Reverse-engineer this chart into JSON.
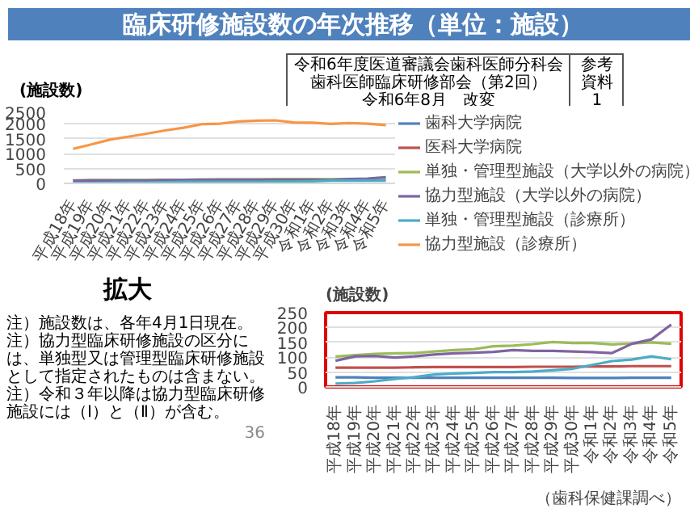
{
  "chart_data": [
    {
      "type": "line",
      "title": "臨床研修施設数の年次推移（単位：施設）",
      "ylabel": "(施設数)",
      "annotations": [
        "令和6年度医道審議会歯科医師分科会",
        "歯科医師臨床研修部会（第2回）",
        "令和6年8月　改変",
        "参考資料1"
      ],
      "categories": [
        "平成18年",
        "平成19年",
        "平成20年",
        "平成21年",
        "平成22年",
        "平成23年",
        "平成24年",
        "平成25年",
        "平成26年",
        "平成27年",
        "平成28年",
        "平成29年",
        "平成30年",
        "令和1年",
        "令和2年",
        "令和3年",
        "令和4年",
        "令和5年"
      ],
      "ylim": [
        0,
        2500
      ],
      "yticks": [
        0,
        500,
        1000,
        1500,
        2000,
        2500
      ],
      "grid": "y",
      "legend": "right",
      "series": [
        {
          "name": "歯科大学病院",
          "color": "#4f81bd",
          "values": [
            null,
            null,
            null,
            null,
            null,
            null,
            null,
            null,
            null,
            null,
            null,
            null,
            null,
            null,
            null,
            null,
            null,
            null
          ]
        },
        {
          "name": "医科大学病院",
          "color": "#c0504d",
          "values": [
            null,
            null,
            null,
            null,
            null,
            null,
            null,
            null,
            null,
            null,
            null,
            null,
            null,
            null,
            null,
            null,
            null,
            null
          ]
        },
        {
          "name": "単独・管理型施設（大学以外の病院）",
          "color": "#9bbb59",
          "values": [
            100,
            110,
            110,
            110,
            110,
            120,
            120,
            130,
            140,
            140,
            140,
            150,
            150,
            150,
            140,
            150,
            150,
            150
          ]
        },
        {
          "name": "協力型施設（大学以外の病院）",
          "color": "#8064a2",
          "values": [
            90,
            100,
            100,
            100,
            100,
            110,
            110,
            120,
            120,
            120,
            120,
            120,
            120,
            120,
            110,
            150,
            160,
            210
          ]
        },
        {
          "name": "単独・管理型施設（診療所）",
          "color": "#4bacc6",
          "values": [
            10,
            10,
            20,
            30,
            30,
            40,
            50,
            50,
            50,
            50,
            50,
            60,
            60,
            70,
            90,
            90,
            100,
            90
          ]
        },
        {
          "name": "協力型施設（診療所）",
          "color": "#f79646",
          "values": [
            1160,
            1310,
            1470,
            1570,
            1670,
            1780,
            1870,
            1990,
            2010,
            2080,
            2110,
            2120,
            2050,
            2040,
            2000,
            2030,
            2010,
            1960
          ]
        }
      ]
    },
    {
      "type": "line",
      "ylabel": "(施設数)",
      "annotations": [
        "拡大",
        "注）施設数は、各年4月1日現在。",
        "注）協力型臨床研修施設の区分には、単独型又は管理型臨床研修施設として指定されたものは含まない。",
        "注）令和３年以降は協力型臨床研修施設には（Ⅰ）と（Ⅱ）が含む。",
        "（歯科保健課調べ）",
        "36"
      ],
      "categories": [
        "平成18年",
        "平成19年",
        "平成20年",
        "平成21年",
        "平成22年",
        "平成23年",
        "平成24年",
        "平成25年",
        "平成26年",
        "平成27年",
        "平成28年",
        "平成29年",
        "平成30年",
        "令和1年",
        "令和2年",
        "令和3年",
        "令和4年",
        "令和5年"
      ],
      "ylim": [
        0,
        250
      ],
      "yticks": [
        0,
        50,
        100,
        150,
        200,
        250
      ],
      "grid": "y",
      "series": [
        {
          "color": "#4f81bd",
          "values": [
            32,
            32,
            31,
            31,
            31,
            31,
            31,
            31,
            31,
            31,
            31,
            31,
            30,
            30,
            30,
            31,
            31,
            31
          ]
        },
        {
          "color": "#c0504d",
          "values": [
            65,
            65,
            65,
            65,
            66,
            67,
            67,
            67,
            67,
            67,
            68,
            68,
            68,
            69,
            69,
            70,
            70,
            70
          ]
        },
        {
          "color": "#9bbb59",
          "values": [
            102,
            107,
            111,
            113,
            114,
            119,
            124,
            127,
            137,
            139,
            144,
            151,
            148,
            148,
            143,
            146,
            150,
            145
          ]
        },
        {
          "color": "#8064a2",
          "values": [
            88,
            103,
            104,
            99,
            103,
            109,
            113,
            115,
            118,
            124,
            121,
            121,
            119,
            117,
            114,
            145,
            160,
            210
          ]
        },
        {
          "color": "#4bacc6",
          "values": [
            11,
            13,
            19,
            27,
            33,
            42,
            45,
            47,
            50,
            50,
            52,
            56,
            61,
            74,
            87,
            92,
            103,
            93
          ]
        }
      ]
    }
  ]
}
